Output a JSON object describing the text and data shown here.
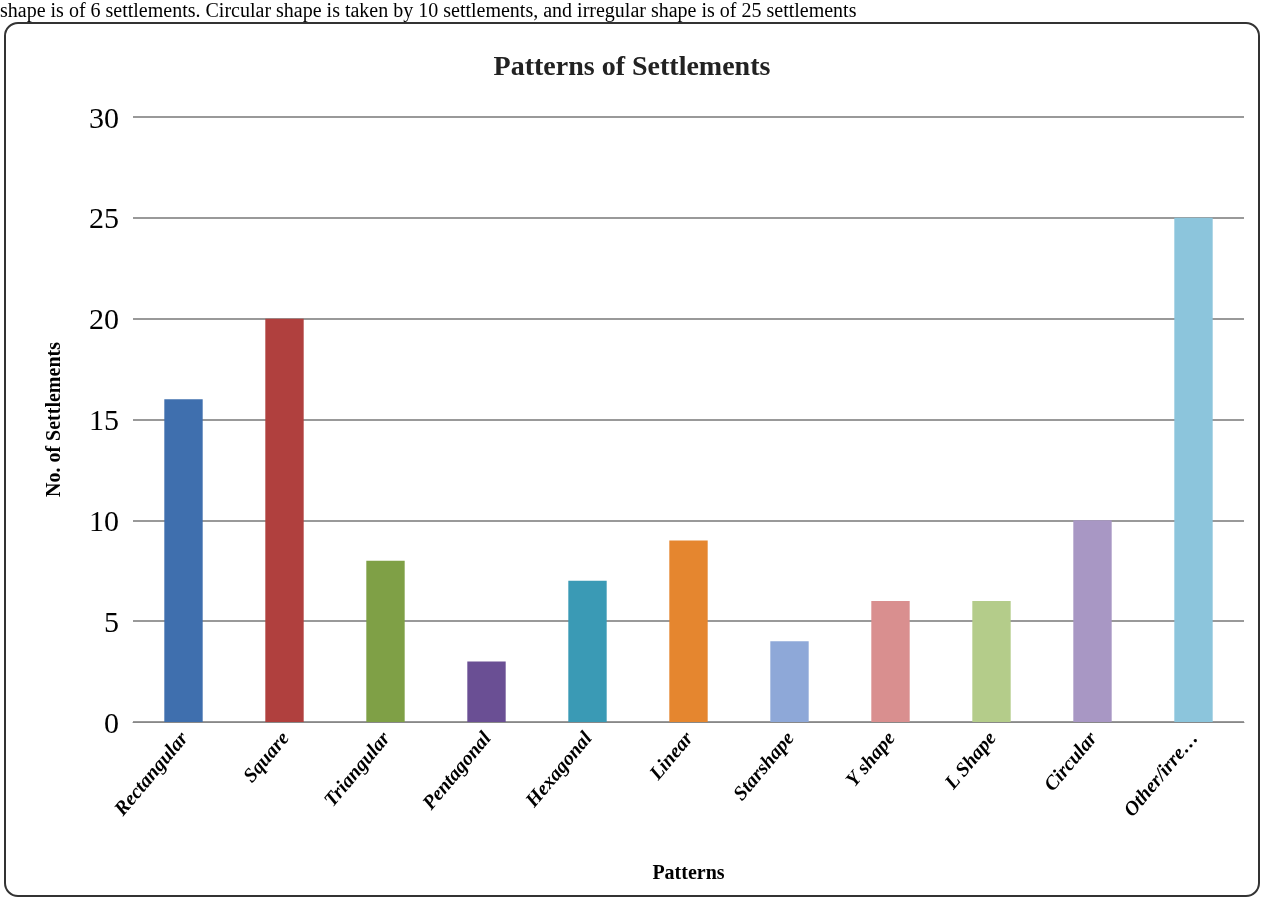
{
  "chart_data": {
    "type": "bar",
    "title": "Patterns of Settlements",
    "xlabel": "Patterns",
    "ylabel": "No. of Settlements",
    "annotations": [
      "shape is of 6 settlements. Circular shape is taken by 10 settlements, and irregular shape is of 25 settlements"
    ],
    "categories": [
      "Rectangular",
      "Square",
      "Triangular",
      "Pentagonal",
      "Hexagonal",
      "Linear",
      "Starshape",
      "Y shape",
      "L Shape",
      "Circular",
      "Other/irre…"
    ],
    "values": [
      16,
      20,
      8,
      3,
      7,
      9,
      4,
      6,
      6,
      10,
      25
    ],
    "colors": [
      "#3f6fae",
      "#b0403e",
      "#7fa046",
      "#6a4f94",
      "#3a9ab5",
      "#e5862f",
      "#8ea8d8",
      "#d98f8f",
      "#b4cc8a",
      "#a897c4",
      "#8cc5dc"
    ],
    "ylim": [
      0,
      30
    ],
    "yticks": [
      0,
      5,
      10,
      15,
      20,
      25,
      30
    ],
    "grid": "y"
  }
}
